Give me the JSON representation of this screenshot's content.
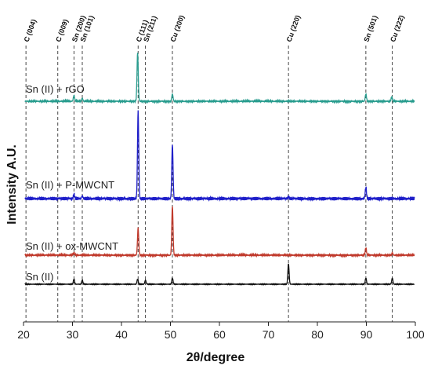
{
  "chart_data": {
    "type": "line",
    "title": "",
    "xlabel": "2θ/degree",
    "ylabel": "Intensity A.U.",
    "xlim": [
      20,
      100
    ],
    "x_ticks": [
      "20",
      "30",
      "40",
      "50",
      "60",
      "70",
      "80",
      "90",
      "100"
    ],
    "grid": false,
    "reference_lines": [
      {
        "label": "C (004)",
        "x": 20.5
      },
      {
        "label": "C (009)",
        "x": 27.0
      },
      {
        "label": "Sn (200)",
        "x": 30.3
      },
      {
        "label": "Sn (101)",
        "x": 32.0
      },
      {
        "label": "C (111)",
        "x": 43.4
      },
      {
        "label": "Sn (211)",
        "x": 44.9
      },
      {
        "label": "Cu (200)",
        "x": 50.4
      },
      {
        "label": "Cu (220)",
        "x": 74.1
      },
      {
        "label": "Sn (501)",
        "x": 89.9
      },
      {
        "label": "Cu (222)",
        "x": 95.3
      }
    ],
    "series": [
      {
        "name": "Sn (II) + rGO",
        "color": "#2a9d8f",
        "peaks": [
          {
            "x": 30.3,
            "height": 0.12
          },
          {
            "x": 32.0,
            "height": 0.06
          },
          {
            "x": 43.3,
            "height": 1.0
          },
          {
            "x": 50.4,
            "height": 0.15
          },
          {
            "x": 89.9,
            "height": 0.15
          },
          {
            "x": 95.2,
            "height": 0.09
          }
        ]
      },
      {
        "name": "Sn (II) + P-MWCNT",
        "color": "#1f1fc9",
        "peaks": [
          {
            "x": 30.3,
            "height": 0.05
          },
          {
            "x": 32.0,
            "height": 0.03
          },
          {
            "x": 43.4,
            "height": 1.0
          },
          {
            "x": 50.4,
            "height": 0.62
          },
          {
            "x": 74.1,
            "height": 0.02
          },
          {
            "x": 89.9,
            "height": 0.13
          }
        ]
      },
      {
        "name": "Sn (II) + ox-MWCNT",
        "color": "#c0392b",
        "peaks": [
          {
            "x": 30.3,
            "height": 0.05
          },
          {
            "x": 43.4,
            "height": 0.55
          },
          {
            "x": 50.4,
            "height": 1.0
          },
          {
            "x": 89.9,
            "height": 0.15
          },
          {
            "x": 95.3,
            "height": 0.04
          }
        ]
      },
      {
        "name": "Sn (II)",
        "color": "#111111",
        "peaks": [
          {
            "x": 30.3,
            "height": 0.25
          },
          {
            "x": 32.0,
            "height": 0.2
          },
          {
            "x": 43.3,
            "height": 0.25
          },
          {
            "x": 44.9,
            "height": 0.2
          },
          {
            "x": 50.4,
            "height": 0.3
          },
          {
            "x": 74.1,
            "height": 1.0
          },
          {
            "x": 89.9,
            "height": 0.3
          },
          {
            "x": 95.3,
            "height": 0.3
          }
        ]
      }
    ]
  }
}
